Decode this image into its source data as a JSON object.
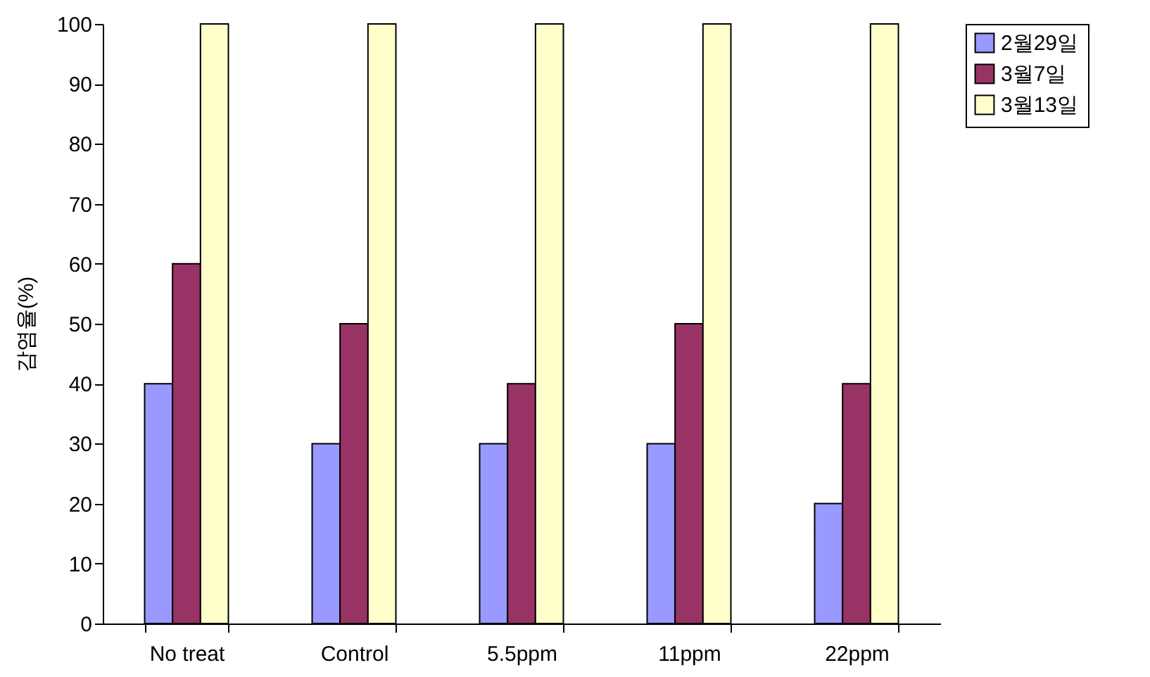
{
  "chart_data": {
    "type": "bar",
    "ylabel": "감염율(%)",
    "categories": [
      "No treat",
      "Control",
      "5.5ppm",
      "11ppm",
      "22ppm"
    ],
    "series": [
      {
        "name": "2월29일",
        "color": "#9999ff",
        "values": [
          40,
          30,
          30,
          30,
          20
        ]
      },
      {
        "name": "3월7일",
        "color": "#993366",
        "values": [
          60,
          50,
          40,
          50,
          40
        ]
      },
      {
        "name": "3월13일",
        "color": "#ffffcc",
        "values": [
          100,
          100,
          100,
          100,
          100
        ]
      }
    ],
    "ylim": [
      0,
      100
    ],
    "yticks": [
      0,
      10,
      20,
      30,
      40,
      50,
      60,
      70,
      80,
      90,
      100
    ],
    "grid": false,
    "legend": "right"
  }
}
